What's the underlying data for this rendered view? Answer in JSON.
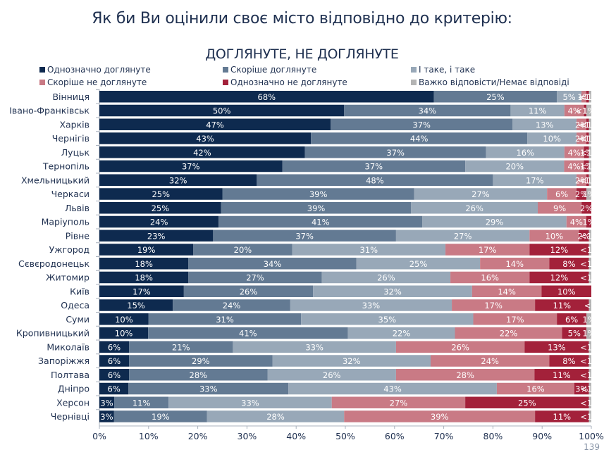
{
  "chart_data": {
    "type": "bar",
    "orientation": "horizontal",
    "stacked": true,
    "title": "Як би Ви оцінили своє місто відповідно до критерію:",
    "subtitle": "ДОГЛЯНУТЕ, НЕ ДОГЛЯНУТЕ",
    "xlabel": "",
    "ylabel": "",
    "xlim": [
      0,
      100
    ],
    "x_ticks": [
      "0%",
      "10%",
      "20%",
      "30%",
      "40%",
      "50%",
      "60%",
      "70%",
      "80%",
      "90%",
      "100%"
    ],
    "legend_position": "top",
    "categories": [
      "Вінниця",
      "Івано-Франківськ",
      "Харків",
      "Чернігів",
      "Луцьк",
      "Тернопіль",
      "Хмельницький",
      "Черкаси",
      "Львів",
      "Маріуполь",
      "Рівне",
      "Ужгород",
      "Сєвєродонецьк",
      "Житомир",
      "Київ",
      "Одеса",
      "Суми",
      "Кропивницький",
      "Миколаїв",
      "Запоріжжя",
      "Полтава",
      "Дніпро",
      "Херсон",
      "Чернівці"
    ],
    "series": [
      {
        "name": "Однозначно доглянуте",
        "color": "#0e2a4f",
        "values": [
          68,
          50,
          47,
          43,
          42,
          37,
          32,
          25,
          25,
          24,
          23,
          19,
          18,
          18,
          17,
          15,
          10,
          10,
          6,
          6,
          6,
          6,
          3,
          3
        ],
        "labels": [
          "68%",
          "50%",
          "47%",
          "43%",
          "42%",
          "37%",
          "32%",
          "25%",
          "25%",
          "24%",
          "23%",
          "19%",
          "18%",
          "18%",
          "17%",
          "15%",
          "10%",
          "10%",
          "6%",
          "6%",
          "6%",
          "6%",
          "3%",
          "3%"
        ]
      },
      {
        "name": "Скоріше доглянуте",
        "color": "#637a93",
        "values": [
          25,
          34,
          37,
          44,
          37,
          37,
          48,
          39,
          39,
          41,
          37,
          20,
          34,
          27,
          26,
          24,
          31,
          41,
          21,
          29,
          28,
          33,
          11,
          19
        ],
        "labels": [
          "25%",
          "34%",
          "37%",
          "44%",
          "37%",
          "37%",
          "48%",
          "39%",
          "39%",
          "41%",
          "37%",
          "20%",
          "34%",
          "27%",
          "26%",
          "24%",
          "31%",
          "41%",
          "21%",
          "29%",
          "28%",
          "33%",
          "11%",
          "19%"
        ]
      },
      {
        "name": "І таке, і таке",
        "color": "#98a8b8",
        "values": [
          5,
          11,
          13,
          10,
          16,
          20,
          17,
          27,
          26,
          29,
          27,
          31,
          25,
          26,
          32,
          33,
          35,
          22,
          33,
          32,
          26,
          43,
          33,
          28
        ],
        "labels": [
          "5%",
          "11%",
          "13%",
          "10%",
          "16%",
          "20%",
          "17%",
          "27%",
          "26%",
          "29%",
          "27%",
          "31%",
          "25%",
          "26%",
          "32%",
          "33%",
          "35%",
          "22%",
          "33%",
          "32%",
          "26%",
          "43%",
          "33%",
          "28%"
        ]
      },
      {
        "name": "Скоріше не доглянуте",
        "color": "#c97a85",
        "values": [
          1,
          4,
          2,
          2,
          4,
          4,
          2,
          6,
          9,
          4,
          10,
          17,
          14,
          16,
          14,
          17,
          17,
          22,
          26,
          24,
          28,
          16,
          27,
          39
        ],
        "labels": [
          "1%",
          "4%",
          "2%",
          "2%",
          "4%",
          "4%",
          "2%",
          "6%",
          "9%",
          "4%",
          "10%",
          "17%",
          "14%",
          "16%",
          "14%",
          "17%",
          "17%",
          "22%",
          "26%",
          "24%",
          "28%",
          "16%",
          "27%",
          "39%"
        ]
      },
      {
        "name": "Однозначно не доглянуте",
        "color": "#a3213a",
        "values": [
          0.5,
          0.5,
          0.5,
          0.5,
          1,
          1,
          0.5,
          2,
          2,
          1,
          2,
          12,
          8,
          12,
          10,
          11,
          6,
          5,
          13,
          8,
          11,
          3,
          25,
          11
        ],
        "labels": [
          "<1%",
          "<1%",
          "<1%",
          "<1%",
          "1%",
          "1%",
          "<1%",
          "2%",
          "2%",
          "1%",
          "2%",
          "12%",
          "8%",
          "12%",
          "10%",
          "11%",
          "6%",
          "5%",
          "13%",
          "8%",
          "11%",
          "3%",
          "25%",
          "11%"
        ]
      },
      {
        "name": "Важко відповісти/Немає відповіді",
        "color": "#b4b4b4",
        "values": [
          0.5,
          1,
          0.5,
          0.5,
          0.5,
          0.5,
          0.5,
          1,
          0,
          0,
          0.5,
          0.5,
          0.5,
          0.5,
          0,
          0.5,
          1,
          1,
          0.5,
          0.5,
          0.5,
          0.5,
          0.5,
          0.5
        ],
        "labels": [
          "<1%",
          "1%",
          "<1%",
          "<1%",
          "<1%",
          "<1%",
          "<1%",
          "1%",
          "",
          "",
          "<1%",
          "<1%",
          "<1%",
          "<1%",
          "",
          "<1",
          "1%",
          "1%",
          "<1%",
          "<1%",
          "<1%",
          "<1%",
          "<1%",
          "<1%"
        ]
      }
    ]
  },
  "page_number": "139"
}
